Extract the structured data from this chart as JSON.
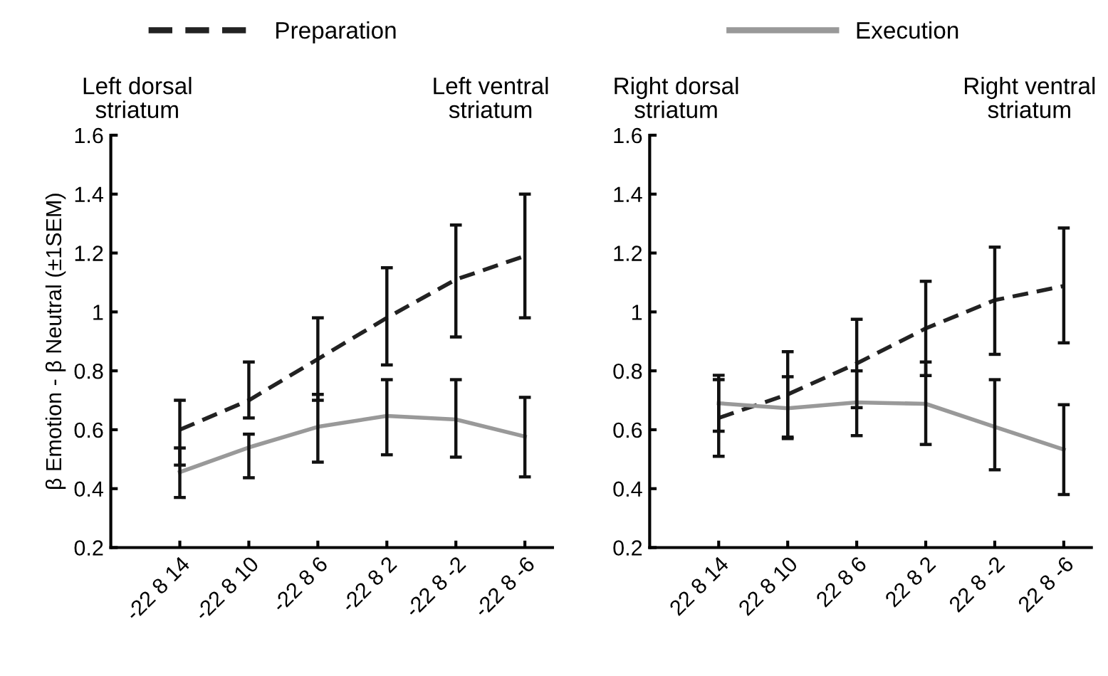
{
  "chart_data": [
    {
      "type": "line",
      "ylabel": "β Emotion - β Neutral (±1SEM)",
      "annotations": [
        "Left dorsal\nstriatum",
        "Left ventral\nstriatum"
      ],
      "categories": [
        "-22 8 14",
        "-22 8 10",
        "-22 8 6",
        "-22 8 2",
        "-22 8 -2",
        "-22 8 -6"
      ],
      "series": [
        {
          "name": "Preparation",
          "color": "#222222",
          "line_style": "dashed",
          "values": [
            0.6,
            0.7,
            0.84,
            0.98,
            1.11,
            1.19
          ],
          "errors": [
            [
              0.48,
              0.7
            ],
            [
              0.64,
              0.83
            ],
            [
              0.7,
              0.98
            ],
            [
              0.82,
              1.15
            ],
            [
              0.915,
              1.295
            ],
            [
              0.98,
              1.4
            ]
          ]
        },
        {
          "name": "Execution",
          "color": "#999999",
          "line_style": "solid",
          "values": [
            0.456,
            0.54,
            0.61,
            0.647,
            0.635,
            0.577
          ],
          "errors": [
            [
              0.37,
              0.538
            ],
            [
              0.437,
              0.585
            ],
            [
              0.49,
              0.72
            ],
            [
              0.515,
              0.77
            ],
            [
              0.507,
              0.77
            ],
            [
              0.44,
              0.71
            ]
          ]
        }
      ],
      "ylim": [
        0.2,
        1.6
      ],
      "yticks": [
        0.2,
        0.4,
        0.6,
        0.8,
        1,
        1.2,
        1.4,
        1.6
      ],
      "grid": false,
      "legend": "top",
      "marker": "none"
    },
    {
      "type": "line",
      "annotations": [
        "Right dorsal\nstriatum",
        "Right ventral\nstriatum"
      ],
      "categories": [
        "22 8 14",
        "22 8 10",
        "22 8 6",
        "22 8 2",
        "22 8 -2",
        "22 8 -6"
      ],
      "series": [
        {
          "color": "#222222",
          "line_style": "dashed",
          "values": [
            0.64,
            0.72,
            0.825,
            0.944,
            1.04,
            1.088
          ],
          "errors": [
            [
              0.51,
              0.77
            ],
            [
              0.575,
              0.865
            ],
            [
              0.675,
              0.975
            ],
            [
              0.784,
              1.104
            ],
            [
              0.856,
              1.22
            ],
            [
              0.895,
              1.285
            ]
          ]
        },
        {
          "color": "#999999",
          "line_style": "solid",
          "values": [
            0.69,
            0.673,
            0.693,
            0.688,
            0.61,
            0.533
          ],
          "errors": [
            [
              0.595,
              0.785
            ],
            [
              0.57,
              0.78
            ],
            [
              0.58,
              0.8
            ],
            [
              0.55,
              0.83
            ],
            [
              0.464,
              0.77
            ],
            [
              0.38,
              0.685
            ]
          ]
        }
      ],
      "ylim": [
        0.2,
        1.6
      ],
      "yticks": [
        0.2,
        0.4,
        0.6,
        0.8,
        1,
        1.2,
        1.4,
        1.6
      ],
      "grid": false,
      "marker": "none"
    }
  ]
}
